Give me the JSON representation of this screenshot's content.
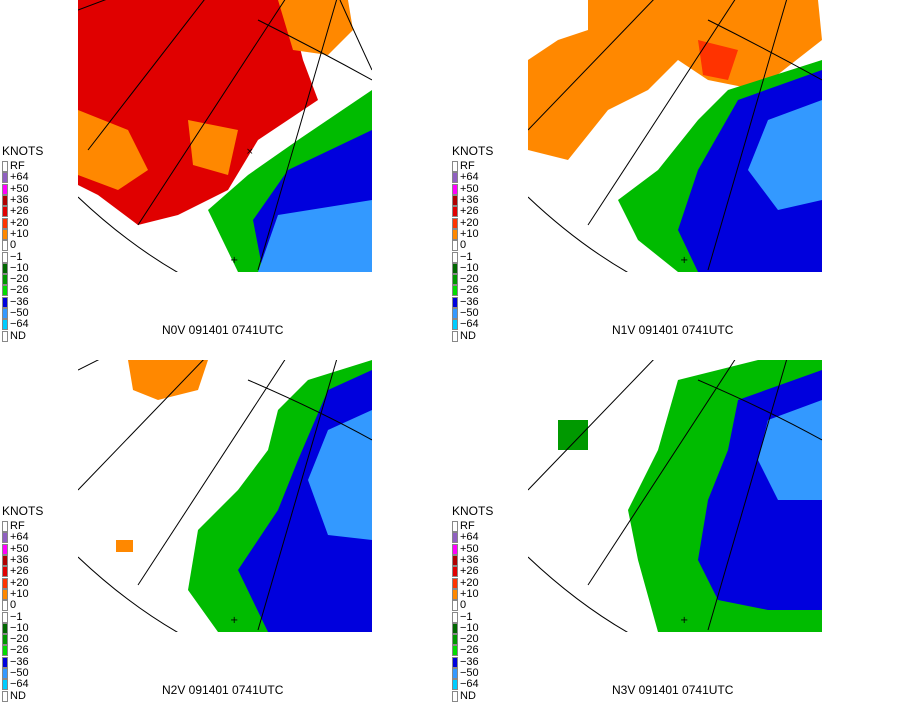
{
  "legend": {
    "title": "KNOTS",
    "items": [
      {
        "label": "RF",
        "color": "#ffffff"
      },
      {
        "label": "+64",
        "color": "#9060c0"
      },
      {
        "label": "+50",
        "color": "#ff00ff"
      },
      {
        "label": "+36",
        "color": "#b00000"
      },
      {
        "label": "+26",
        "color": "#e00000"
      },
      {
        "label": "+20",
        "color": "#ff3300"
      },
      {
        "label": "+10",
        "color": "#ff8800"
      },
      {
        "label": "0",
        "color": "#ffffff"
      },
      {
        "label": "−1",
        "color": "#ffffff"
      },
      {
        "label": "−10",
        "color": "#006600"
      },
      {
        "label": "−20",
        "color": "#009900"
      },
      {
        "label": "−26",
        "color": "#00dd00"
      },
      {
        "label": "−36",
        "color": "#0000dd"
      },
      {
        "label": "−50",
        "color": "#3399ff"
      },
      {
        "label": "−64",
        "color": "#00ccff"
      },
      {
        "label": "ND",
        "color": "#ffffff"
      }
    ]
  },
  "panels": [
    {
      "caption": "N0V 091401 0741UTC",
      "scheme": "outbound-dominant"
    },
    {
      "caption": "N1V 091401 0741UTC",
      "scheme": "mixed-orange"
    },
    {
      "caption": "N2V 091401 0741UTC",
      "scheme": "inbound-dominant"
    },
    {
      "caption": "N3V 091401 0741UTC",
      "scheme": "green-dominant"
    }
  ],
  "colors": {
    "orange": "#ff8800",
    "red": "#ff3300",
    "dark_red": "#e00000",
    "dark_green": "#006600",
    "green": "#00dd00",
    "mid_green": "#009900",
    "blue": "#0000dd",
    "light_blue": "#3399ff",
    "cyan": "#00ccff",
    "contour": "#c89b00"
  }
}
